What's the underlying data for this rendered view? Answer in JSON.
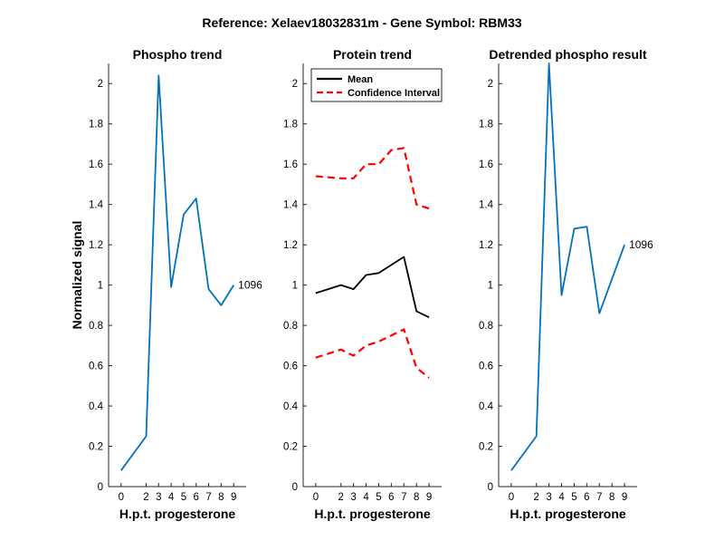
{
  "chart_data": {
    "suptitle": "Reference:  Xelaev18032831m - Gene Symbol:  RBM33",
    "panels": [
      {
        "type": "line",
        "title": "Phospho trend",
        "xlabel": "H.p.t. progesterone",
        "ylabel": "Normalized signal",
        "x": [
          0,
          2,
          3,
          4,
          5,
          6,
          7,
          8,
          9
        ],
        "xticks": [
          0,
          2,
          3,
          4,
          5,
          6,
          7,
          8,
          9
        ],
        "ylim": [
          0,
          2.1
        ],
        "yticks": [
          "0",
          "0.2",
          "0.4",
          "0.6",
          "0.8",
          "1",
          "1.2",
          "1.4",
          "1.6",
          "1.8",
          "2"
        ],
        "series": [
          {
            "values": [
              0.08,
              0.25,
              2.04,
              0.99,
              1.35,
              1.43,
              0.98,
              0.9,
              1.0
            ],
            "color": "#0072BD",
            "style": "solid"
          }
        ],
        "end_label": "1096"
      },
      {
        "type": "line",
        "title": "Protein trend",
        "xlabel": "H.p.t. progesterone",
        "ylabel": "",
        "x": [
          0,
          2,
          3,
          4,
          5,
          6,
          7,
          8,
          9
        ],
        "xticks": [
          0,
          2,
          3,
          4,
          5,
          6,
          7,
          8,
          9
        ],
        "ylim": [
          0,
          2.1
        ],
        "yticks": [
          "0",
          "0.2",
          "0.4",
          "0.6",
          "0.8",
          "1",
          "1.2",
          "1.4",
          "1.6",
          "1.8",
          "2"
        ],
        "series": [
          {
            "name": "Mean",
            "values": [
              0.96,
              1.0,
              0.98,
              1.05,
              1.06,
              1.1,
              1.14,
              0.87,
              0.84
            ],
            "color": "#000000",
            "style": "solid"
          },
          {
            "name": "Confidence Interval",
            "values": [
              1.54,
              1.53,
              1.53,
              1.6,
              1.6,
              1.67,
              1.68,
              1.4,
              1.38
            ],
            "color": "#FF0000",
            "style": "dashed"
          },
          {
            "values": [
              0.64,
              0.68,
              0.65,
              0.7,
              0.72,
              0.75,
              0.78,
              0.59,
              0.54
            ],
            "color": "#FF0000",
            "style": "dashed"
          }
        ],
        "legend": {
          "position": "top-left",
          "items": [
            {
              "label": "Mean",
              "color": "#000000",
              "style": "solid"
            },
            {
              "label": "Confidence Interval",
              "color": "#FF0000",
              "style": "dashed"
            }
          ]
        }
      },
      {
        "type": "line",
        "title": "Detrended phospho result",
        "xlabel": "H.p.t. progesterone",
        "ylabel": "",
        "x": [
          0,
          2,
          3,
          4,
          5,
          6,
          7,
          8,
          9
        ],
        "xticks": [
          0,
          2,
          3,
          4,
          5,
          6,
          7,
          8,
          9
        ],
        "ylim": [
          0,
          2.1
        ],
        "yticks": [
          "0",
          "0.2",
          "0.4",
          "0.6",
          "0.8",
          "1",
          "1.2",
          "1.4",
          "1.6",
          "1.8",
          "2"
        ],
        "series": [
          {
            "values": [
              0.08,
              0.25,
              2.1,
              0.95,
              1.28,
              1.29,
              0.86,
              1.03,
              1.2
            ],
            "color": "#0072BD",
            "style": "solid"
          }
        ],
        "end_label": "1096"
      }
    ]
  }
}
